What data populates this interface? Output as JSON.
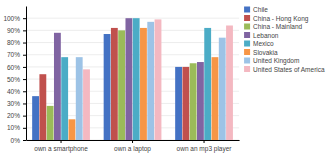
{
  "chart_data": {
    "type": "bar",
    "categories": [
      "own a smartphone",
      "own a laptop",
      "own an mp3 player"
    ],
    "series": [
      {
        "name": "Chile",
        "color": "#4472C4",
        "values": [
          0.36,
          0.87,
          0.6
        ]
      },
      {
        "name": "China - Hong Kong",
        "color": "#C0504D",
        "values": [
          0.54,
          0.92,
          0.6
        ]
      },
      {
        "name": "China - Mainland",
        "color": "#9BBB59",
        "values": [
          0.28,
          0.9,
          0.63
        ]
      },
      {
        "name": "Lebanon",
        "color": "#8064A2",
        "values": [
          0.88,
          1.0,
          0.64
        ]
      },
      {
        "name": "Mexico",
        "color": "#4BACC6",
        "values": [
          0.68,
          1.0,
          0.92
        ]
      },
      {
        "name": "Slovakia",
        "color": "#F79646",
        "values": [
          0.17,
          0.92,
          0.68
        ]
      },
      {
        "name": "United Kingdom",
        "color": "#9DC3E6",
        "values": [
          0.68,
          0.97,
          0.84
        ]
      },
      {
        "name": "United States of America",
        "color": "#F4B8C1",
        "values": [
          0.58,
          0.99,
          0.94
        ]
      }
    ],
    "ylim": [
      0,
      1.1
    ],
    "yticks": [
      {
        "value": 0,
        "label": "0%"
      },
      {
        "value": 0.1,
        "label": "10%"
      },
      {
        "value": 0.2,
        "label": "20%"
      },
      {
        "value": 0.3,
        "label": "30%"
      },
      {
        "value": 0.4,
        "label": "40%"
      },
      {
        "value": 0.5,
        "label": "50%"
      },
      {
        "value": 0.6,
        "label": "60%"
      },
      {
        "value": 0.7,
        "label": "70%"
      },
      {
        "value": 0.8,
        "label": "80%"
      },
      {
        "value": 0.9,
        "label": "90%"
      },
      {
        "value": 1.0,
        "label": "100%"
      }
    ],
    "grid": true,
    "legend": "right"
  }
}
